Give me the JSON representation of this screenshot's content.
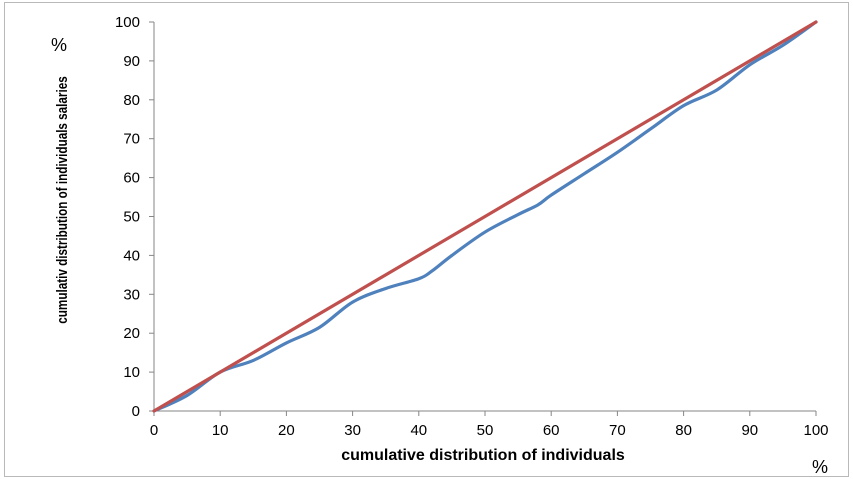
{
  "chart_data": {
    "type": "line",
    "title": "",
    "xlabel": "cumulative distribution of individuals",
    "ylabel": "cumulativ distribution of individuals salaries",
    "x_unit": "%",
    "y_unit": "%",
    "xlim": [
      0,
      100
    ],
    "ylim": [
      0,
      100
    ],
    "x_ticks": [
      "0",
      "10",
      "20",
      "30",
      "40",
      "50",
      "60",
      "70",
      "80",
      "90",
      "100"
    ],
    "y_ticks": [
      "0",
      "10",
      "20",
      "30",
      "40",
      "50",
      "60",
      "70",
      "80",
      "90",
      "100"
    ],
    "grid": false,
    "legend": "none",
    "series": [
      {
        "color": "#4f81bd",
        "x": [
          0,
          5,
          10,
          15,
          20,
          25,
          30,
          35,
          40,
          42,
          45,
          50,
          55,
          58,
          60,
          65,
          70,
          75,
          80,
          85,
          90,
          95,
          100
        ],
        "y": [
          0,
          4,
          10,
          13,
          17.5,
          21.5,
          28,
          31.5,
          34,
          36,
          40,
          46,
          50.5,
          53,
          55.5,
          61,
          66.5,
          72.5,
          78.5,
          82.5,
          89,
          94,
          100
        ]
      },
      {
        "color": "#c0504d",
        "x": [
          0,
          100
        ],
        "y": [
          0,
          100
        ]
      }
    ]
  }
}
